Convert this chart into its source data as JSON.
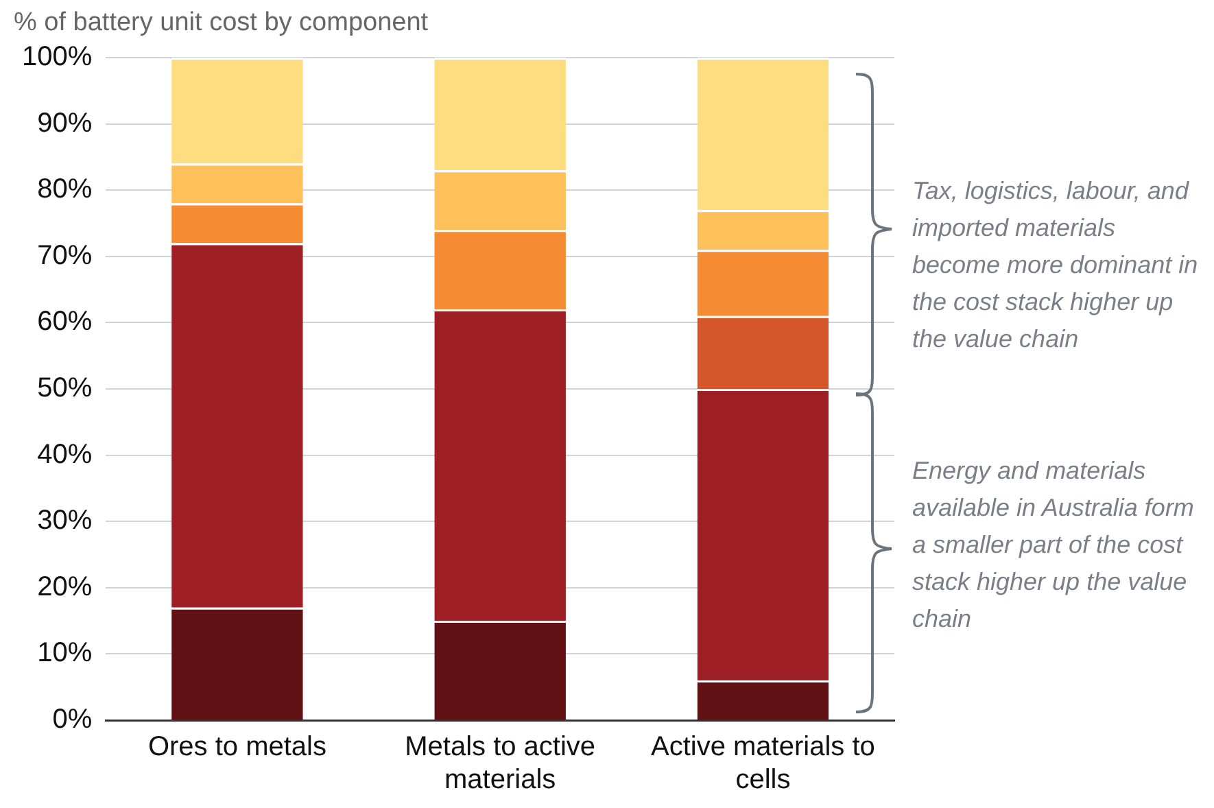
{
  "chart_data": {
    "type": "bar",
    "title": "% of battery unit cost by component",
    "categories": [
      "Ores to metals",
      "Metals to active materials",
      "Active materials to cells"
    ],
    "stacked": true,
    "series": [
      {
        "color": "#611014",
        "values": [
          17,
          15,
          6
        ]
      },
      {
        "color": "#9e2026",
        "values": [
          55,
          47,
          44
        ]
      },
      {
        "color": "#d4572a",
        "values": [
          null,
          null,
          11
        ]
      },
      {
        "color": "#f58b33",
        "values": [
          6,
          12,
          10
        ]
      },
      {
        "color": "#fdc05b",
        "values": [
          6,
          9,
          6
        ]
      },
      {
        "color": "#fddd7f",
        "values": [
          16,
          17,
          23
        ]
      }
    ],
    "ylim": [
      0,
      100
    ],
    "yticks": [
      {
        "value": 0,
        "label": "0%"
      },
      {
        "value": 10,
        "label": "10%"
      },
      {
        "value": 20,
        "label": "20%"
      },
      {
        "value": 30,
        "label": "30%"
      },
      {
        "value": 40,
        "label": "40%"
      },
      {
        "value": 50,
        "label": "50%"
      },
      {
        "value": 60,
        "label": "60%"
      },
      {
        "value": 70,
        "label": "70%"
      },
      {
        "value": 80,
        "label": "80%"
      },
      {
        "value": 90,
        "label": "90%"
      },
      {
        "value": 100,
        "label": "100%"
      }
    ],
    "grid": "y",
    "legend": false,
    "annotations": [
      "Tax, logistics, labour, and imported materials become more dominant in the cost stack higher up the value chain",
      "Energy and materials available in Australia form a smaller part of the cost stack higher up the value chain"
    ]
  }
}
